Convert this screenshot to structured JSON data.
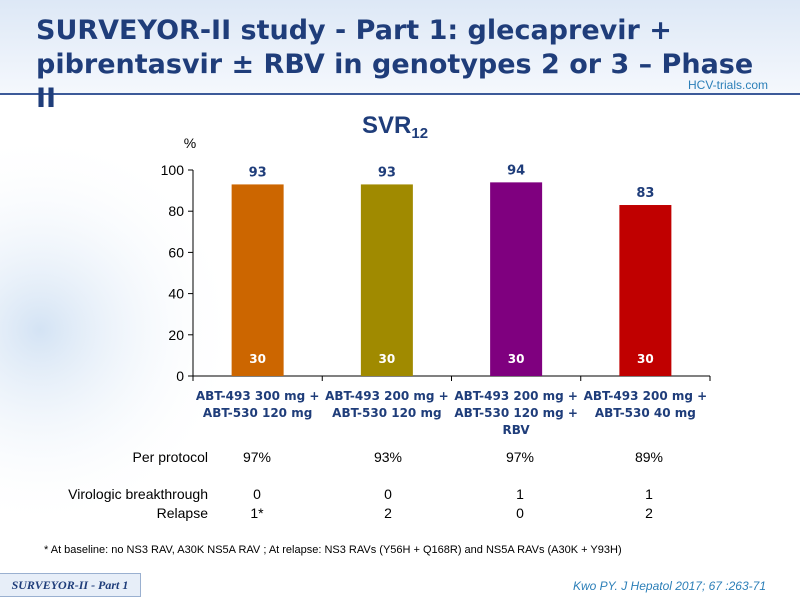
{
  "title": "SURVEYOR-II study - Part 1: glecaprevir + pibrentasvir ± RBV in genotypes 2 or 3 – Phase II",
  "logo": {
    "text": "HCV-trials.com"
  },
  "chart_title": {
    "main": "SVR",
    "sub": "12"
  },
  "chart_data": {
    "type": "bar",
    "ylabel": "%",
    "ylim": [
      0,
      100
    ],
    "yticks": [
      0,
      20,
      40,
      60,
      80,
      100
    ],
    "categories": [
      [
        "ABT-493 300 mg +",
        "ABT-530 120 mg"
      ],
      [
        "ABT-493 200 mg +",
        "ABT-530 120 mg"
      ],
      [
        "ABT-493 200 mg +",
        "ABT-530 120 mg +",
        "RBV"
      ],
      [
        "ABT-493 200 mg +",
        "ABT-530 40 mg"
      ]
    ],
    "values": [
      93,
      93,
      94,
      83
    ],
    "n": [
      "30",
      "30",
      "30",
      "30"
    ],
    "colors": [
      "#cc6600",
      "#a08a00",
      "#7f007f",
      "#c00000"
    ],
    "value_color": "#1f3d7a",
    "grid": false
  },
  "table": {
    "rows": [
      {
        "label": "Per protocol",
        "values": [
          "97%",
          "93%",
          "97%",
          "89%"
        ]
      },
      {
        "label": "Virologic breakthrough",
        "values": [
          "0",
          "0",
          "1",
          "1"
        ]
      },
      {
        "label": "Relapse",
        "values": [
          "1*",
          "2",
          "0",
          "2"
        ]
      }
    ]
  },
  "footnote": "* At baseline: no NS3 RAV, A30K NS5A RAV ; At relapse: NS3 RAVs (Y56H + Q168R) and NS5A RAVs (A30K + Y93H)",
  "tag": "SURVEYOR-II - Part 1",
  "citation": "Kwo PY. J Hepatol 2017; 67 :263-71"
}
